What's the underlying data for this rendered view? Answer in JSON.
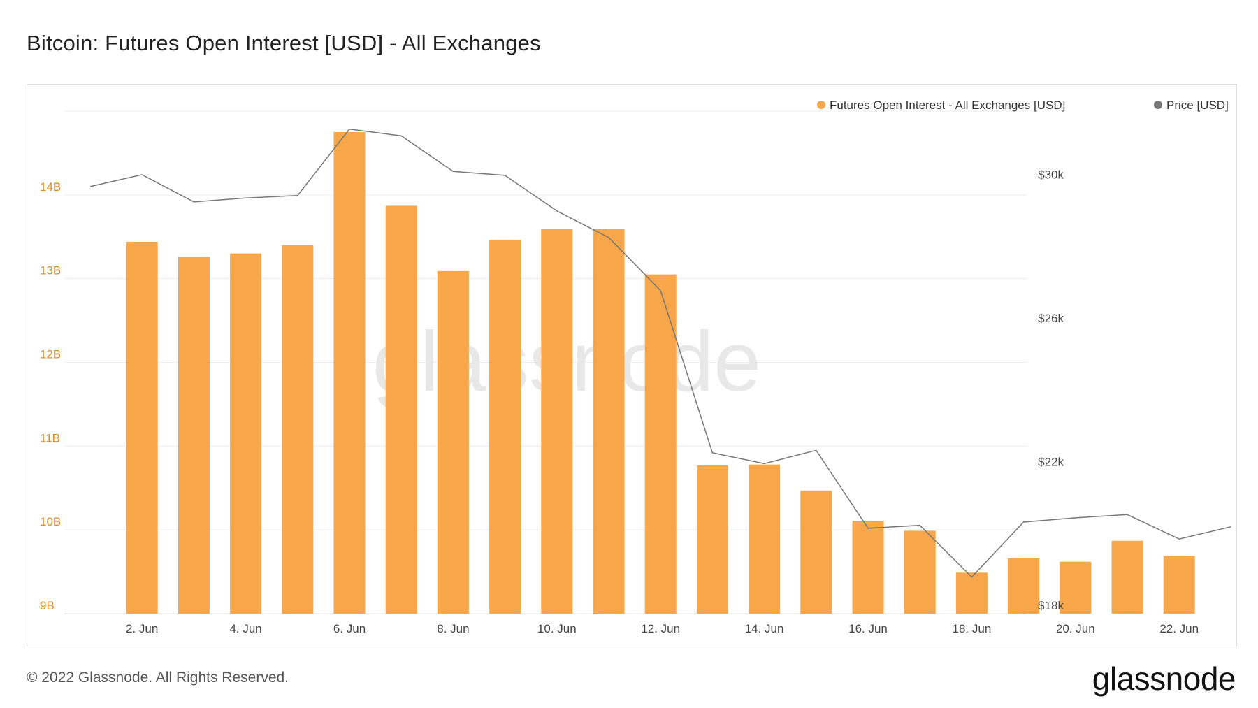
{
  "title": "Bitcoin: Futures Open Interest [USD] - All Exchanges",
  "footer": "© 2022 Glassnode. All Rights Reserved.",
  "logo": "glassnode",
  "watermark": "glassnode",
  "colors": {
    "bar": "#f7a64a",
    "price": "#777777",
    "left_tick": "#d98a2b",
    "grid": "#ececec",
    "watermark": "#e8e8e8"
  },
  "chart_data": {
    "type": "bar",
    "title": "Bitcoin: Futures Open Interest [USD] - All Exchanges",
    "x": [
      "1 Jun",
      "2 Jun",
      "3 Jun",
      "4 Jun",
      "5 Jun",
      "6 Jun",
      "7 Jun",
      "8 Jun",
      "9 Jun",
      "10 Jun",
      "11 Jun",
      "12 Jun",
      "13 Jun",
      "14 Jun",
      "15 Jun",
      "16 Jun",
      "17 Jun",
      "18 Jun",
      "19 Jun",
      "20 Jun",
      "21 Jun",
      "22 Jun",
      "23 Jun"
    ],
    "x_tick_labels": [
      "2. Jun",
      "4. Jun",
      "6. Jun",
      "8. Jun",
      "10. Jun",
      "12. Jun",
      "14. Jun",
      "16. Jun",
      "18. Jun",
      "20. Jun",
      "22. Jun"
    ],
    "x_tick_dates": [
      "2 Jun",
      "4 Jun",
      "6 Jun",
      "8 Jun",
      "10 Jun",
      "12 Jun",
      "14 Jun",
      "16 Jun",
      "18 Jun",
      "20 Jun",
      "22 Jun"
    ],
    "series": [
      {
        "name": "Futures Open Interest - All Exchanges [USD]",
        "kind": "bar",
        "axis": "left",
        "x": [
          "2 Jun",
          "3 Jun",
          "4 Jun",
          "5 Jun",
          "6 Jun",
          "7 Jun",
          "8 Jun",
          "9 Jun",
          "10 Jun",
          "11 Jun",
          "12 Jun",
          "13 Jun",
          "14 Jun",
          "15 Jun",
          "16 Jun",
          "17 Jun",
          "18 Jun",
          "19 Jun",
          "20 Jun",
          "21 Jun",
          "22 Jun"
        ],
        "values": [
          13.44,
          13.26,
          13.3,
          13.4,
          14.75,
          13.87,
          13.09,
          13.46,
          13.59,
          13.59,
          13.05,
          10.77,
          10.78,
          10.47,
          10.11,
          9.99,
          9.49,
          9.66,
          9.62,
          9.87,
          9.69
        ]
      },
      {
        "name": "Price [USD]",
        "kind": "line",
        "axis": "right",
        "x": [
          "1 Jun",
          "2 Jun",
          "3 Jun",
          "4 Jun",
          "5 Jun",
          "6 Jun",
          "7 Jun",
          "8 Jun",
          "9 Jun",
          "10 Jun",
          "11 Jun",
          "12 Jun",
          "13 Jun",
          "14 Jun",
          "15 Jun",
          "16 Jun",
          "17 Jun",
          "18 Jun",
          "19 Jun",
          "20 Jun",
          "21 Jun",
          "22 Jun",
          "23 Jun"
        ],
        "values": [
          29900,
          30230,
          29470,
          29580,
          29650,
          31500,
          31310,
          30320,
          30210,
          29220,
          28480,
          27000,
          22480,
          22180,
          22550,
          20380,
          20460,
          19020,
          20550,
          20670,
          20760,
          20080,
          20420
        ]
      }
    ],
    "left_axis": {
      "ylim": [
        9,
        15
      ],
      "ticks": [
        9,
        10,
        11,
        12,
        13,
        14
      ],
      "tick_labels": [
        "9B",
        "10B",
        "11B",
        "12B",
        "13B",
        "14B"
      ]
    },
    "right_axis": {
      "ylim": [
        18000,
        32000
      ],
      "ticks": [
        18000,
        22000,
        26000,
        30000
      ],
      "tick_labels": [
        "$18k",
        "$22k",
        "$26k",
        "$30k"
      ]
    },
    "legend": {
      "placement": "top-right",
      "entries": [
        "Futures Open Interest - All Exchanges [USD]",
        "Price [USD]"
      ]
    },
    "grid": true
  }
}
